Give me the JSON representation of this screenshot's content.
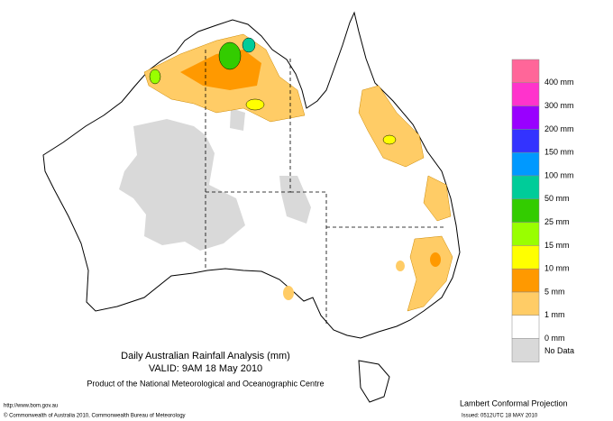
{
  "title": "Daily Australian Rainfall Analysis (mm)",
  "valid": "VALID: 9AM 18 May 2010",
  "product": "Product of the National Meteorological and Oceanographic Centre",
  "url": "http://www.bom.gov.au",
  "copyright": "© Commonwealth of Australia 2010, Commonwealth Bureau of Meteorology",
  "projection": "Lambert Conformal Projection",
  "issued": "Issued: 0512UTC 18 MAY 2010",
  "legend": {
    "colors": [
      "#ff6699",
      "#ff33cc",
      "#9900ff",
      "#3333ff",
      "#0099ff",
      "#00cc99",
      "#33cc00",
      "#99ff00",
      "#ffff00",
      "#ff9900",
      "#ffcc66",
      "#ffffff",
      "#d9d9d9"
    ],
    "labels": [
      "400 mm",
      "300 mm",
      "200 mm",
      "150 mm",
      "100 mm",
      "50 mm",
      "25 mm",
      "15 mm",
      "10 mm",
      "5 mm",
      "1 mm",
      "0 mm",
      "No Data"
    ]
  }
}
